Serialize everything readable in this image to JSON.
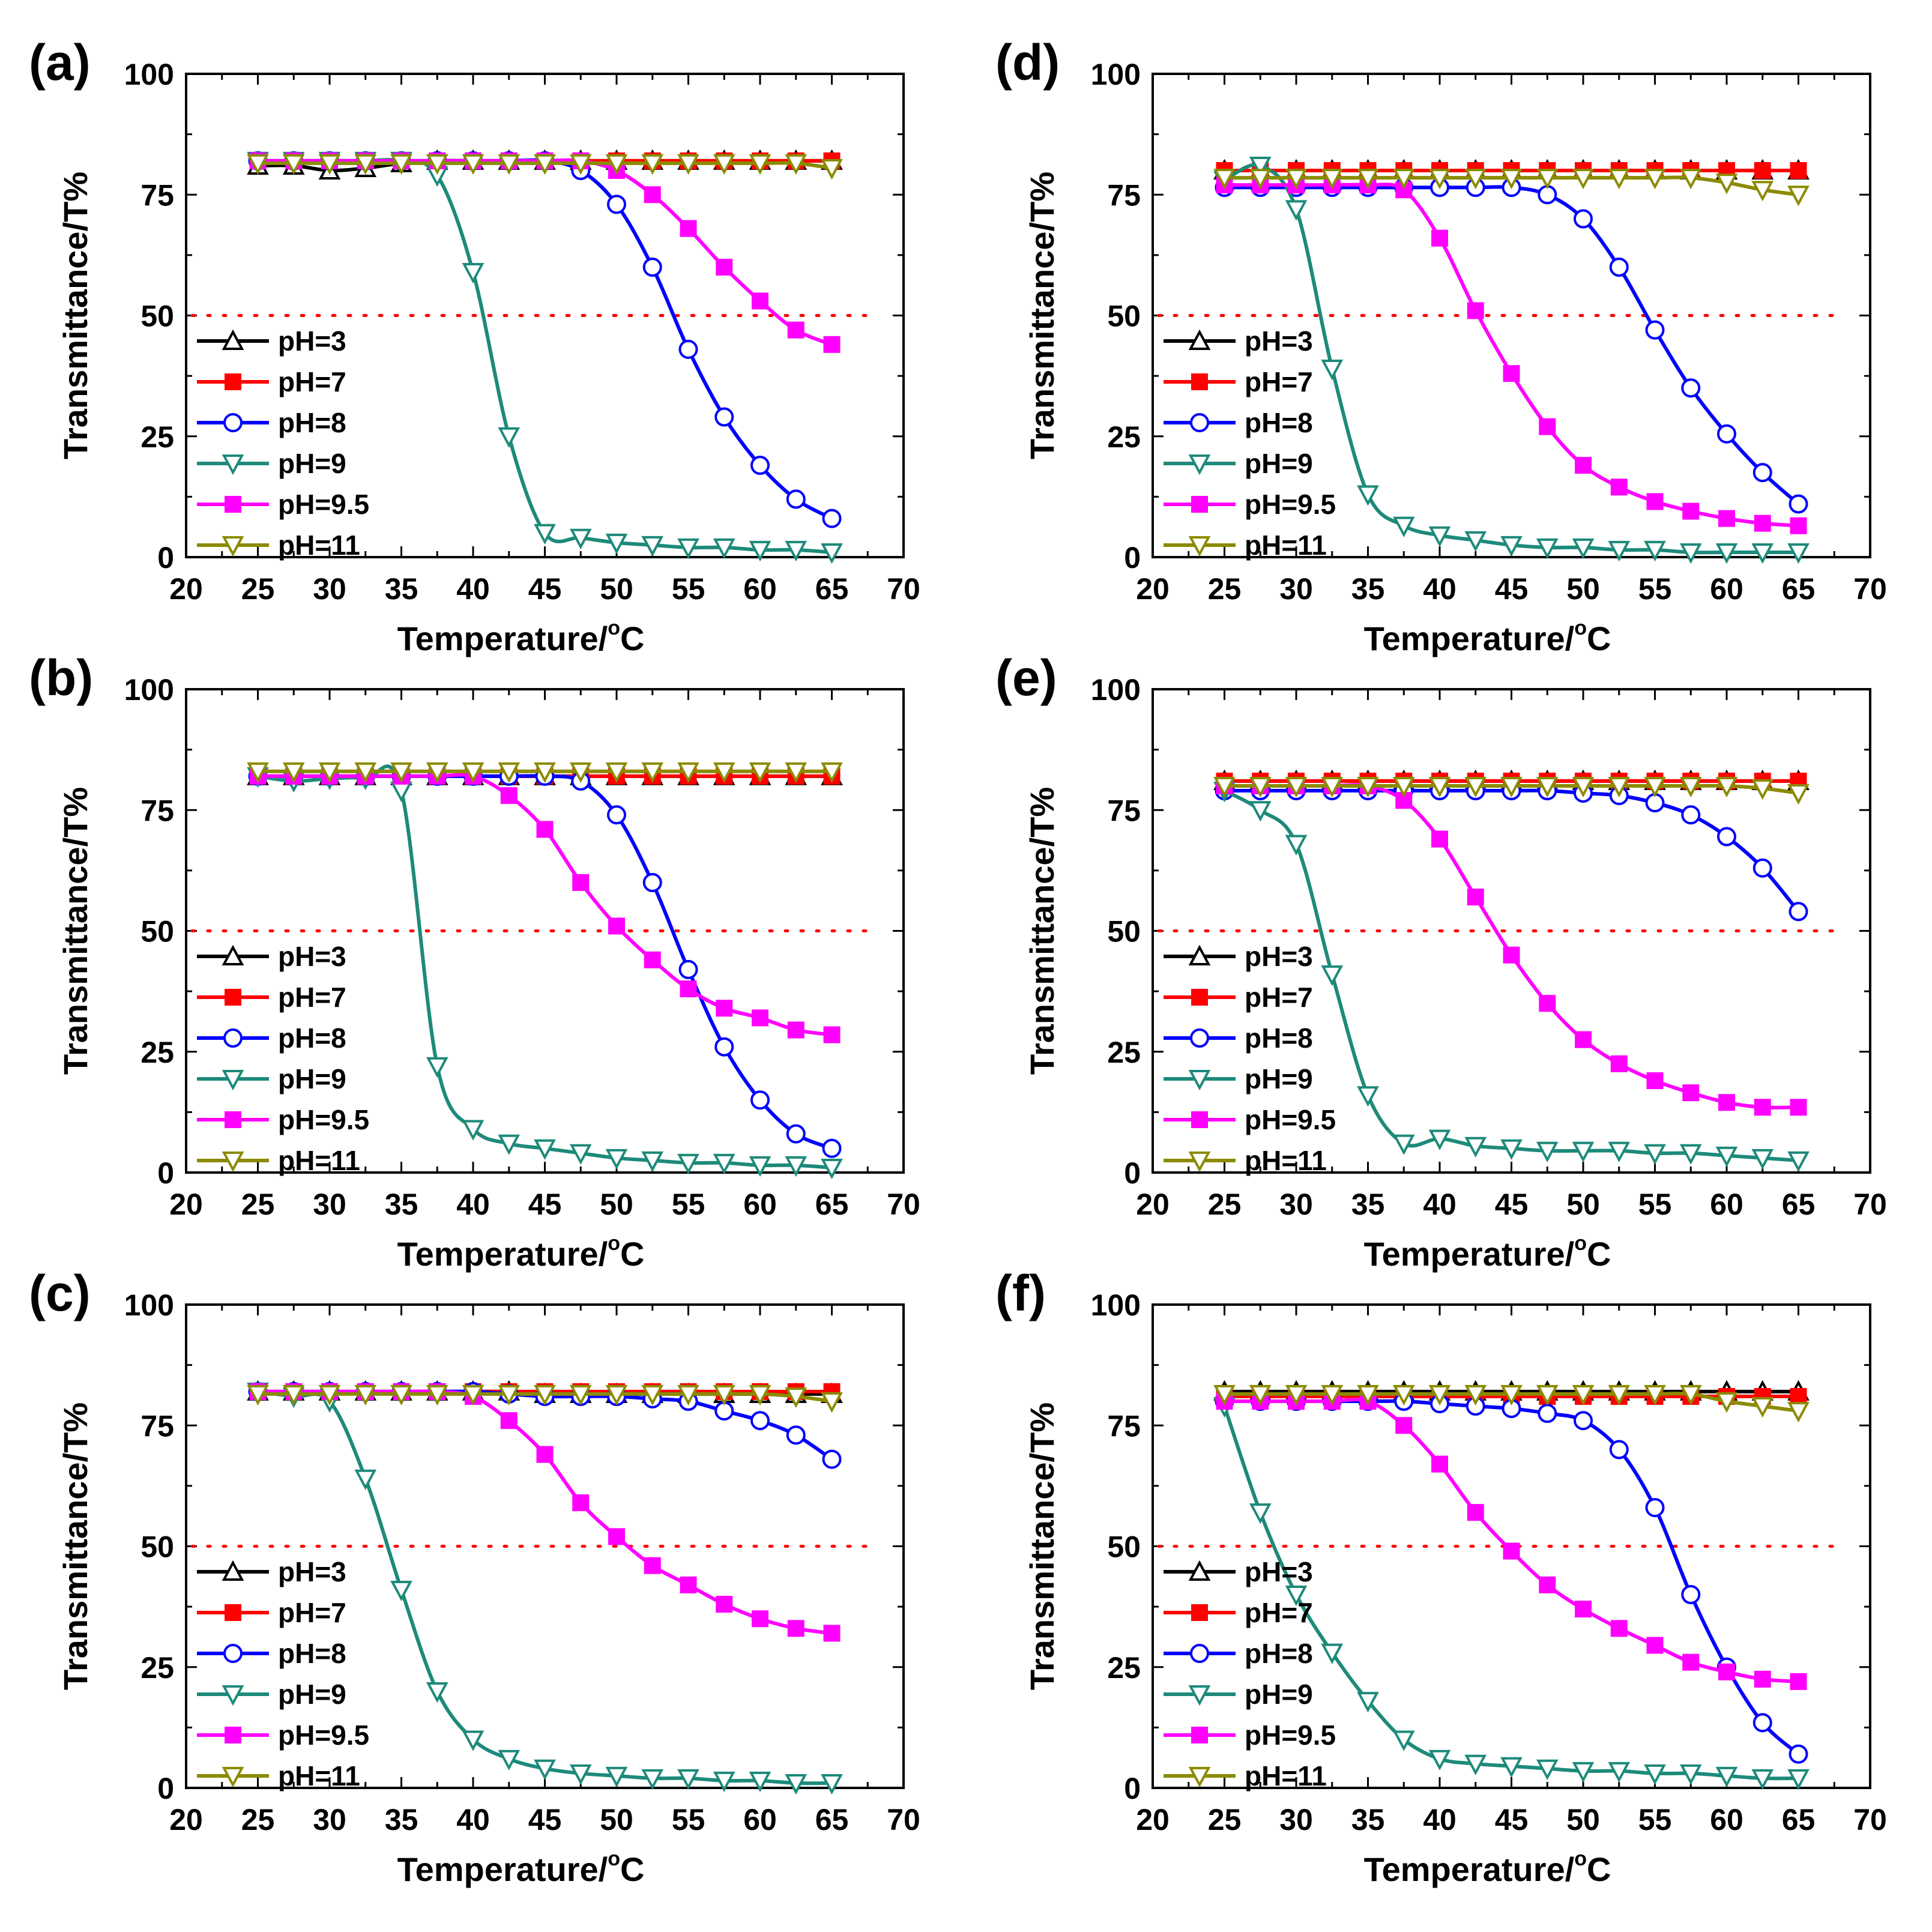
{
  "chart_data": {
    "type": "line",
    "shared": {
      "xlabel": "Temperature/",
      "xlabel_sup": "o",
      "xlabel_unit": "C",
      "ylabel": "Transmittance/T%",
      "xlim": [
        20,
        70
      ],
      "ylim": [
        0,
        100
      ],
      "xticks": [
        20,
        25,
        30,
        35,
        40,
        45,
        50,
        55,
        60,
        65,
        70
      ],
      "yticks": [
        0,
        25,
        50,
        75,
        100
      ],
      "x_points": [
        25,
        27.5,
        30,
        32.5,
        35,
        37.5,
        40,
        42.5,
        45,
        47.5,
        50,
        52.5,
        55,
        57.5,
        60,
        62.5,
        65
      ],
      "reference_line": 50,
      "legend_position": "left-middle",
      "legend_labels": [
        "pH=3",
        "pH=7",
        "pH=8",
        "pH=9",
        "pH=9.5",
        "pH=11"
      ],
      "series_styles": [
        {
          "color": "#000000",
          "marker": "triangle-up"
        },
        {
          "color": "#ff0000",
          "marker": "square"
        },
        {
          "color": "#0000ff",
          "marker": "circle"
        },
        {
          "color": "#1d8a7a",
          "marker": "triangle-down"
        },
        {
          "color": "#ff00ff",
          "marker": "square"
        },
        {
          "color": "#8b8b00",
          "marker": "triangle-down"
        }
      ],
      "reference_color": "#ff0000"
    },
    "panels": [
      {
        "label": "(a)",
        "series": [
          {
            "name": "pH=3",
            "values": [
              81,
              81,
              80,
              80.5,
              81.5,
              82,
              82,
              82,
              82,
              82,
              82,
              82,
              82,
              82,
              82,
              82,
              82
            ]
          },
          {
            "name": "pH=7",
            "values": [
              82,
              82,
              82,
              82,
              82,
              82,
              82,
              82,
              82,
              82,
              82,
              82,
              82,
              82,
              82,
              82,
              82
            ]
          },
          {
            "name": "pH=8",
            "values": [
              82,
              82,
              82,
              82,
              82,
              82,
              82,
              82,
              82,
              80,
              73,
              60,
              43,
              29,
              19,
              12,
              8
            ]
          },
          {
            "name": "pH=9",
            "values": [
              82,
              82,
              82,
              82,
              82,
              79,
              59,
              25,
              5,
              4,
              3,
              2.5,
              2,
              2,
              1.5,
              1.5,
              1
            ]
          },
          {
            "name": "pH=9.5",
            "values": [
              82,
              82,
              82,
              82,
              82,
              82,
              82,
              82,
              82,
              82,
              80,
              75,
              68,
              60,
              53,
              47,
              44
            ]
          },
          {
            "name": "pH=11",
            "values": [
              81.5,
              81.5,
              81.5,
              81.5,
              81.5,
              81.5,
              81.5,
              81.5,
              81.5,
              81.5,
              81.5,
              81.5,
              81.5,
              81.5,
              81.5,
              81.5,
              80.5
            ]
          }
        ]
      },
      {
        "label": "(b)",
        "series": [
          {
            "name": "pH=3",
            "values": [
              82,
              82,
              82,
              82,
              82,
              82,
              82,
              82,
              82,
              82,
              82,
              82,
              82,
              82,
              82,
              82,
              82
            ]
          },
          {
            "name": "pH=7",
            "values": [
              82,
              82,
              82,
              82,
              82,
              82,
              82,
              82,
              82,
              82,
              82,
              82,
              82,
              82,
              82,
              82,
              82
            ]
          },
          {
            "name": "pH=8",
            "values": [
              82,
              82,
              82,
              82,
              82,
              82,
              82,
              82,
              82,
              81,
              74,
              60,
              42,
              26,
              15,
              8,
              5
            ]
          },
          {
            "name": "pH=9",
            "values": [
              82,
              81,
              81.5,
              81.5,
              79,
              22,
              9,
              6,
              5,
              4,
              3,
              2.5,
              2,
              2,
              1.5,
              1.5,
              1
            ]
          },
          {
            "name": "pH=9.5",
            "values": [
              82,
              82,
              82,
              82,
              82,
              82,
              82,
              78,
              71,
              60,
              51,
              44,
              38,
              34,
              32,
              29.5,
              28.5
            ]
          },
          {
            "name": "pH=11",
            "values": [
              83,
              83,
              83,
              83,
              83,
              83,
              83,
              83,
              83,
              83,
              83,
              83,
              83,
              83,
              83,
              83,
              83
            ]
          }
        ]
      },
      {
        "label": "(c)",
        "series": [
          {
            "name": "pH=3",
            "values": [
              82,
              82,
              82,
              82,
              82,
              82,
              82,
              82,
              81.5,
              81.5,
              81.5,
              81.5,
              81.5,
              81.5,
              81.5,
              81.5,
              81.5
            ]
          },
          {
            "name": "pH=7",
            "values": [
              82,
              82,
              82,
              82,
              82,
              82,
              82,
              82,
              82,
              82,
              82,
              82,
              82,
              82,
              82,
              82,
              82
            ]
          },
          {
            "name": "pH=8",
            "values": [
              82,
              82,
              82,
              82,
              82,
              82,
              82,
              81.5,
              81,
              81,
              81,
              80.5,
              80,
              78,
              76,
              73,
              68
            ]
          },
          {
            "name": "pH=9",
            "values": [
              82,
              81,
              80,
              64,
              41,
              20,
              10,
              6,
              4,
              3,
              2.5,
              2,
              2,
              1.5,
              1.5,
              1,
              1
            ]
          },
          {
            "name": "pH=9.5",
            "values": [
              82,
              82,
              82,
              82,
              82,
              82,
              81,
              76,
              69,
              59,
              52,
              46,
              42,
              38,
              35,
              33,
              32
            ]
          },
          {
            "name": "pH=11",
            "values": [
              81.5,
              81.5,
              81.5,
              81.5,
              81.5,
              81.5,
              81.5,
              81.5,
              81.5,
              81.5,
              81.5,
              81.5,
              81.5,
              81.5,
              81.5,
              81,
              80
            ]
          }
        ]
      },
      {
        "label": "(d)",
        "series": [
          {
            "name": "pH=3",
            "values": [
              80,
              80,
              80,
              80,
              80,
              80,
              80,
              80,
              80,
              80,
              80,
              80,
              80,
              80,
              80,
              80,
              80
            ]
          },
          {
            "name": "pH=7",
            "values": [
              80,
              80,
              80,
              80,
              80,
              80,
              80,
              80,
              80,
              80,
              80,
              80,
              80,
              80,
              80,
              80,
              80
            ]
          },
          {
            "name": "pH=8",
            "values": [
              76.5,
              76.5,
              76.5,
              76.5,
              76.5,
              76.5,
              76.5,
              76.5,
              76.5,
              75,
              70,
              60,
              47,
              35,
              25.5,
              17.5,
              11
            ]
          },
          {
            "name": "pH=9",
            "values": [
              78,
              81,
              72,
              39,
              13,
              6.5,
              4.5,
              3.5,
              2.5,
              2,
              2,
              1.5,
              1.5,
              1,
              1,
              1,
              1
            ]
          },
          {
            "name": "pH=9.5",
            "values": [
              77,
              77,
              77,
              77,
              77,
              76,
              66,
              51,
              38,
              27,
              19,
              14.5,
              11.5,
              9.5,
              8,
              7,
              6.5
            ]
          },
          {
            "name": "pH=11",
            "values": [
              78.5,
              78.5,
              78.5,
              78.5,
              78.5,
              78.5,
              78.5,
              78.5,
              78.5,
              78.5,
              78.5,
              78.5,
              78.5,
              78.5,
              77.5,
              76,
              75
            ]
          }
        ]
      },
      {
        "label": "(e)",
        "series": [
          {
            "name": "pH=3",
            "values": [
              81,
              81,
              81,
              81,
              81,
              81,
              81,
              81,
              81,
              81,
              81,
              81,
              81,
              81,
              81,
              81,
              81
            ]
          },
          {
            "name": "pH=7",
            "values": [
              81,
              81,
              81,
              81,
              81,
              81,
              81,
              81,
              81,
              81,
              81,
              81,
              81,
              81,
              81,
              81,
              81
            ]
          },
          {
            "name": "pH=8",
            "values": [
              79,
              79,
              79,
              79,
              79,
              79,
              79,
              79,
              79,
              79,
              78.5,
              78,
              76.5,
              74,
              69.5,
              63,
              54
            ]
          },
          {
            "name": "pH=9",
            "values": [
              79,
              75,
              68,
              41,
              16,
              6,
              7,
              5.5,
              5,
              4.5,
              4.5,
              4.5,
              4,
              4,
              3.5,
              3,
              2.5
            ]
          },
          {
            "name": "pH=9.5",
            "values": [
              80,
              80,
              80,
              80,
              80,
              77,
              69,
              57,
              45,
              35,
              27.5,
              22.5,
              19,
              16.5,
              14.5,
              13.5,
              13.5
            ]
          },
          {
            "name": "pH=11",
            "values": [
              80,
              80,
              80,
              80,
              80,
              80,
              80,
              80,
              80,
              80,
              80,
              80,
              80,
              80,
              80,
              79.5,
              78.5
            ]
          }
        ]
      },
      {
        "label": "(f)",
        "series": [
          {
            "name": "pH=3",
            "values": [
              82,
              82,
              82,
              82,
              82,
              82,
              82,
              82,
              82,
              82,
              82,
              82,
              82,
              82,
              82,
              82,
              82
            ]
          },
          {
            "name": "pH=7",
            "values": [
              81,
              81,
              81,
              81,
              81,
              81,
              81,
              81,
              81,
              81,
              81,
              81,
              81,
              81,
              81,
              81,
              81
            ]
          },
          {
            "name": "pH=8",
            "values": [
              80,
              80,
              80,
              80,
              80,
              80,
              79.5,
              79,
              78.5,
              77.5,
              76,
              70,
              58,
              40,
              25,
              13.5,
              7
            ]
          },
          {
            "name": "pH=9",
            "values": [
              79,
              57,
              40,
              28,
              18,
              10,
              6,
              5,
              4.5,
              4,
              3.5,
              3.5,
              3,
              3,
              2.5,
              2,
              2
            ]
          },
          {
            "name": "pH=9.5",
            "values": [
              80,
              80,
              80,
              80,
              80,
              75,
              67,
              57,
              49,
              42,
              37,
              33,
              29.5,
              26,
              24,
              22.5,
              22
            ]
          },
          {
            "name": "pH=11",
            "values": [
              81.5,
              81.5,
              81.5,
              81.5,
              81.5,
              81.5,
              81.5,
              81.5,
              81.5,
              81.5,
              81.5,
              81.5,
              81.5,
              81.5,
              80,
              79,
              78
            ]
          }
        ]
      }
    ]
  }
}
